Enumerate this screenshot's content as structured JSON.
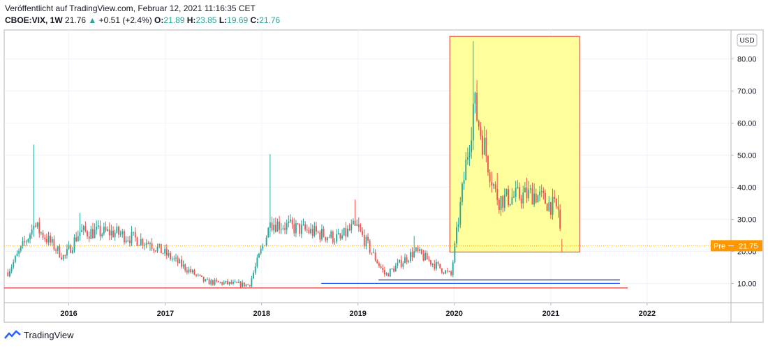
{
  "header": {
    "published": "Veröffentlicht auf TradingView.com, Februar 12, 2021 11:16:35 CET",
    "symbol": "CBOE:VIX, 1W",
    "price": "21.76",
    "arrow": "▲",
    "change": "+0.51 (+2.4%)",
    "o_label": "O:",
    "o_value": "21.89",
    "h_label": "H:",
    "h_value": "23.85",
    "l_label": "L:",
    "l_value": "19.69",
    "c_label": "C:",
    "c_value": "21.76"
  },
  "footer": {
    "brand": "TradingView"
  },
  "colors": {
    "up": "#26a69a",
    "down": "#ef5350",
    "highlight_fill": "#ffff8a",
    "highlight_border": "#e53935",
    "price_tag": "#ff9800",
    "support_line": "#e53935",
    "trend_line_dark": "#1a237e",
    "trend_line_blue": "#2962ff"
  },
  "chart_data": {
    "type": "candlestick",
    "currency_label": "USD",
    "y_ticks": [
      "10.00",
      "20.00",
      "30.00",
      "40.00",
      "50.00",
      "60.00",
      "70.00",
      "80.00"
    ],
    "ylim": [
      4,
      89
    ],
    "x_ticks": [
      "2016",
      "2017",
      "2018",
      "2019",
      "2020",
      "2021",
      "2022"
    ],
    "xlim": [
      "2015-05-01",
      "2022-11-15"
    ],
    "price_tag": {
      "label": "Pre",
      "value": "21.75"
    },
    "key_points": [
      {
        "date": "2015-05-15",
        "close": 13.5
      },
      {
        "date": "2015-08-24",
        "high": 53.3,
        "close": 28.0
      },
      {
        "date": "2015-12-15",
        "close": 18.0
      },
      {
        "date": "2016-02-10",
        "high": 32.0,
        "close": 26.0
      },
      {
        "date": "2016-06-24",
        "high": 26.7,
        "close": 25.8
      },
      {
        "date": "2016-11-04",
        "high": 23.0,
        "close": 22.5
      },
      {
        "date": "2017-06-01",
        "close": 10.5
      },
      {
        "date": "2017-11-15",
        "close": 9.5
      },
      {
        "date": "2018-02-05",
        "high": 50.3,
        "close": 29.0
      },
      {
        "date": "2018-10-24",
        "high": 25.0,
        "close": 24.0
      },
      {
        "date": "2018-12-24",
        "high": 36.2,
        "close": 28.0
      },
      {
        "date": "2019-04-15",
        "close": 12.5
      },
      {
        "date": "2019-08-05",
        "high": 24.8,
        "close": 20.0
      },
      {
        "date": "2019-12-20",
        "close": 12.5
      },
      {
        "date": "2020-03-16",
        "high": 85.5,
        "close": 66.0
      },
      {
        "date": "2020-06-11",
        "high": 44.4,
        "close": 36.0
      },
      {
        "date": "2020-10-30",
        "high": 41.2,
        "close": 38.0
      },
      {
        "date": "2021-01-27",
        "high": 37.5,
        "close": 33.0
      },
      {
        "date": "2021-02-12",
        "open": 21.89,
        "high": 23.85,
        "low": 19.69,
        "close": 21.76
      }
    ],
    "annotations": {
      "highlight_box": {
        "x0": "2019-12-15",
        "x1": "2021-04-20",
        "y0": 19.8,
        "y1": 87.0
      },
      "support_line": {
        "x0": "2015-05-01",
        "x1": "2021-10-20",
        "y": 8.6
      },
      "trend_lines": [
        {
          "x0": "2019-03-20",
          "x1": "2021-09-20",
          "y": 11.1
        },
        {
          "x0": "2018-08-15",
          "x1": "2021-09-20",
          "y": 10.0
        }
      ],
      "pre_line_value": 21.75
    }
  }
}
